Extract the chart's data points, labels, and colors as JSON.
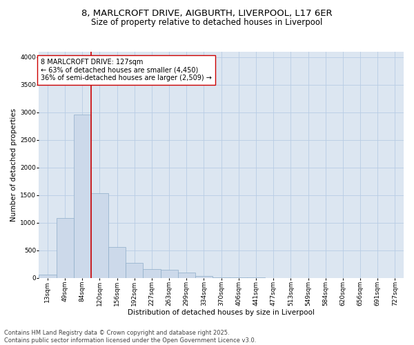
{
  "title_line1": "8, MARLCROFT DRIVE, AIGBURTH, LIVERPOOL, L17 6ER",
  "title_line2": "Size of property relative to detached houses in Liverpool",
  "xlabel": "Distribution of detached houses by size in Liverpool",
  "ylabel": "Number of detached properties",
  "bar_color": "#ccd9ea",
  "bar_edge_color": "#8eacc8",
  "grid_color": "#b8cce4",
  "background_color": "#dce6f1",
  "vline_color": "#cc0000",
  "bin_labels": [
    "13sqm",
    "49sqm",
    "84sqm",
    "120sqm",
    "156sqm",
    "192sqm",
    "227sqm",
    "263sqm",
    "299sqm",
    "334sqm",
    "370sqm",
    "406sqm",
    "441sqm",
    "477sqm",
    "513sqm",
    "549sqm",
    "584sqm",
    "620sqm",
    "656sqm",
    "691sqm",
    "727sqm"
  ],
  "bar_heights": [
    55,
    1090,
    2960,
    1535,
    560,
    270,
    155,
    150,
    95,
    30,
    10,
    10,
    5,
    0,
    0,
    0,
    0,
    0,
    0,
    0,
    0
  ],
  "ylim": [
    0,
    4100
  ],
  "yticks": [
    0,
    500,
    1000,
    1500,
    2000,
    2500,
    3000,
    3500,
    4000
  ],
  "vline_x_index": 2.5,
  "annotation_title": "8 MARLCROFT DRIVE: 127sqm",
  "annotation_line1": "← 63% of detached houses are smaller (4,450)",
  "annotation_line2": "36% of semi-detached houses are larger (2,509) →",
  "footnote_line1": "Contains HM Land Registry data © Crown copyright and database right 2025.",
  "footnote_line2": "Contains public sector information licensed under the Open Government Licence v3.0.",
  "title_fontsize": 9.5,
  "subtitle_fontsize": 8.5,
  "axis_label_fontsize": 7.5,
  "tick_fontsize": 6.5,
  "annotation_fontsize": 7,
  "footnote_fontsize": 6
}
